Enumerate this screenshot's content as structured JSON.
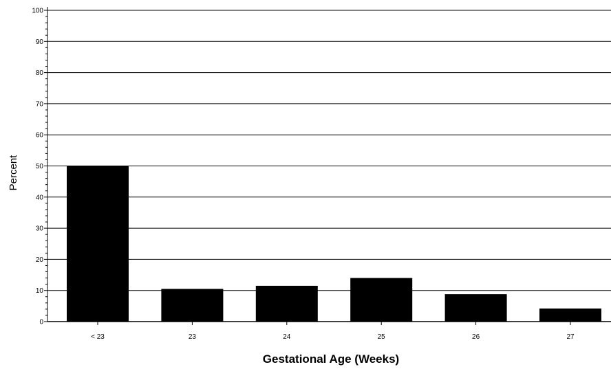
{
  "chart_data": {
    "type": "bar",
    "title": "",
    "xlabel": "Gestational Age (Weeks)",
    "ylabel": "Percent",
    "categories": [
      "< 23",
      "23",
      "24",
      "25",
      "26",
      "27"
    ],
    "values": [
      50,
      10.5,
      11.5,
      14,
      8.8,
      4.2
    ],
    "ylim": [
      0,
      100
    ],
    "yticks": [
      "0",
      "10",
      "20",
      "30",
      "40",
      "50",
      "60",
      "70",
      "80",
      "90",
      "100"
    ],
    "grid": true,
    "bar_color": "#000000",
    "grid_color": "#000000"
  }
}
